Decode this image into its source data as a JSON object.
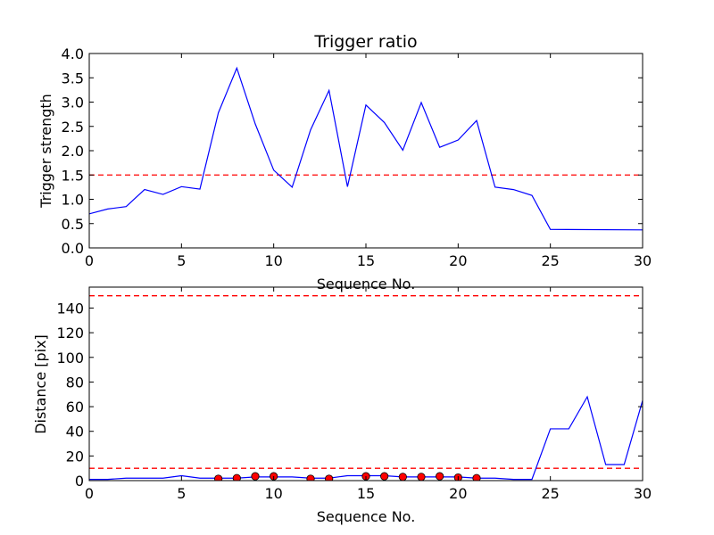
{
  "chart_data": [
    {
      "type": "line",
      "title": "Trigger ratio",
      "xlabel": "Sequence No.",
      "ylabel": "Trigger strength",
      "xlim": [
        0,
        30
      ],
      "ylim": [
        0,
        4.0
      ],
      "xticks": [
        "0",
        "5",
        "10",
        "15",
        "20",
        "25",
        "30"
      ],
      "yticks": [
        "0.0",
        "0.5",
        "1.0",
        "1.5",
        "2.0",
        "2.5",
        "3.0",
        "3.5",
        "4.0"
      ],
      "series": [
        {
          "x": [
            0,
            1,
            2,
            3,
            4,
            5,
            6,
            7,
            8,
            9,
            10,
            11,
            12,
            13,
            14,
            15,
            16,
            17,
            18,
            19,
            20,
            21,
            22,
            23,
            24,
            25,
            30
          ],
          "y": [
            0.7,
            0.8,
            0.85,
            1.2,
            1.1,
            1.26,
            1.21,
            2.78,
            3.7,
            2.55,
            1.6,
            1.25,
            2.43,
            3.24,
            1.26,
            2.94,
            2.58,
            2.01,
            2.99,
            2.07,
            2.22,
            2.62,
            1.25,
            1.2,
            1.08,
            0.38,
            0.37
          ],
          "color": "#0000ff"
        }
      ],
      "reference_lines": [
        {
          "y": 1.5,
          "color": "#ff0000",
          "style": "dashed"
        }
      ]
    },
    {
      "type": "line",
      "title": "",
      "xlabel": "Sequence No.",
      "ylabel": "Distance [pix]",
      "xlim": [
        0,
        30
      ],
      "ylim": [
        0,
        157
      ],
      "xticks": [
        "0",
        "5",
        "10",
        "15",
        "20",
        "25",
        "30"
      ],
      "yticks": [
        "0",
        "20",
        "40",
        "60",
        "80",
        "100",
        "120",
        "140"
      ],
      "series": [
        {
          "x": [
            0,
            1,
            2,
            3,
            4,
            5,
            6,
            7,
            8,
            9,
            10,
            11,
            12,
            13,
            14,
            15,
            16,
            17,
            18,
            19,
            20,
            21,
            22,
            23,
            24,
            25,
            26,
            27,
            28,
            29,
            30
          ],
          "y": [
            1,
            1,
            2,
            2,
            2,
            4,
            2,
            2,
            2,
            3,
            3,
            3,
            2,
            2,
            4,
            4,
            4,
            3,
            3,
            3,
            3,
            2,
            2,
            1,
            1,
            42,
            42,
            68,
            13,
            13,
            65
          ],
          "color": "#0000ff"
        },
        {
          "x": [
            7,
            8,
            9,
            10,
            12,
            13,
            15,
            16,
            17,
            18,
            19,
            20,
            21
          ],
          "y": [
            1.5,
            2,
            3.5,
            3.5,
            1.5,
            1.5,
            3.5,
            3.5,
            3,
            3,
            3.5,
            2.5,
            2
          ],
          "color": "#ff0000",
          "marker": "circle"
        }
      ],
      "reference_lines": [
        {
          "y": 150,
          "color": "#ff0000",
          "style": "dashed"
        },
        {
          "y": 10,
          "color": "#ff0000",
          "style": "dashed"
        }
      ]
    }
  ]
}
